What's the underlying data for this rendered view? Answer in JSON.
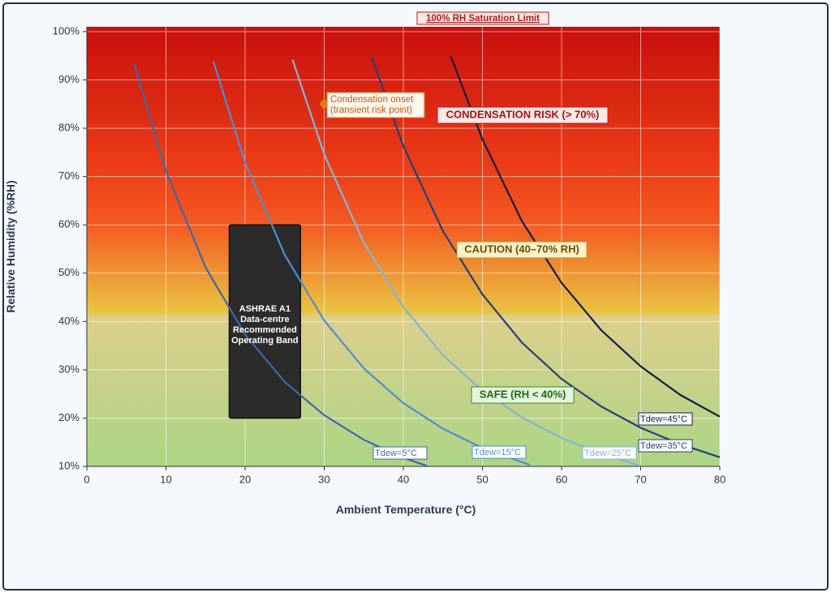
{
  "chart_data": {
    "type": "line",
    "title": "100% RH Saturation Limit",
    "x_label": "Ambient Temperature (°C)",
    "y_label": "Relative Humidity (%RH)",
    "xlim": [
      0,
      80
    ],
    "ylim": [
      10,
      101
    ],
    "xticks": [
      0,
      10,
      20,
      30,
      40,
      50,
      60,
      70,
      80
    ],
    "yticks": [
      {
        "value": 10,
        "label": "10%"
      },
      {
        "value": 20,
        "label": "20%"
      },
      {
        "value": 30,
        "label": "30%"
      },
      {
        "value": 40,
        "label": "40%"
      },
      {
        "value": 50,
        "label": "50%"
      },
      {
        "value": 60,
        "label": "60%"
      },
      {
        "value": 70,
        "label": "70%"
      },
      {
        "value": 80,
        "label": "80%"
      },
      {
        "value": 90,
        "label": "90%"
      },
      {
        "value": 100,
        "label": "100%"
      }
    ],
    "grid": true,
    "series": [
      {
        "name": "Tdew=5°C",
        "color": "#3b6aa8",
        "x": [
          6,
          10,
          15,
          20,
          25,
          30,
          35,
          40,
          43
        ],
        "values": [
          93.3,
          71.1,
          51.2,
          37.3,
          27.5,
          20.6,
          15.5,
          11.8,
          10.1
        ]
      },
      {
        "name": "Tdew=15°C",
        "color": "#4d8fcc",
        "x": [
          16,
          20,
          25,
          30,
          35,
          40,
          45,
          50,
          56
        ],
        "values": [
          93.8,
          72.9,
          53.8,
          40.2,
          30.3,
          23.1,
          17.8,
          13.8,
          10.3
        ]
      },
      {
        "name": "Tdew=25°C",
        "color": "#7fb6dc",
        "x": [
          26,
          30,
          35,
          40,
          45,
          50,
          55,
          60,
          65,
          70
        ],
        "values": [
          94.2,
          74.6,
          56.3,
          43.0,
          33.0,
          25.7,
          20.1,
          15.9,
          12.6,
          10.1
        ]
      },
      {
        "name": "Tdew=35°C",
        "color": "#23407a",
        "x": [
          36,
          40,
          45,
          50,
          55,
          60,
          65,
          70,
          75,
          80
        ],
        "values": [
          94.8,
          76.3,
          58.7,
          45.6,
          35.6,
          28.1,
          22.4,
          18.0,
          14.6,
          11.9
        ]
      },
      {
        "name": "Tdew=45°C",
        "color": "#141d45",
        "x": [
          46,
          50,
          55,
          60,
          65,
          70,
          75,
          80
        ],
        "values": [
          94.9,
          77.7,
          60.7,
          48.0,
          38.2,
          30.7,
          24.8,
          20.3
        ]
      }
    ],
    "band": {
      "lines": [
        "ASHRAE A1",
        "Data-centre",
        "Recommended",
        "Operating Band"
      ],
      "x": [
        18,
        27
      ],
      "y": [
        20,
        60
      ],
      "color": "#2b2b2b"
    },
    "point": {
      "lines": [
        "Condensation onset",
        "(transient risk point)"
      ],
      "x": 30,
      "y": 85,
      "color": "#e07b1a"
    },
    "zones": [
      "CONDENSATION RISK  (> 70%)",
      "CAUTION  (40–70% RH)",
      "SAFE  (RH < 40%)"
    ]
  }
}
